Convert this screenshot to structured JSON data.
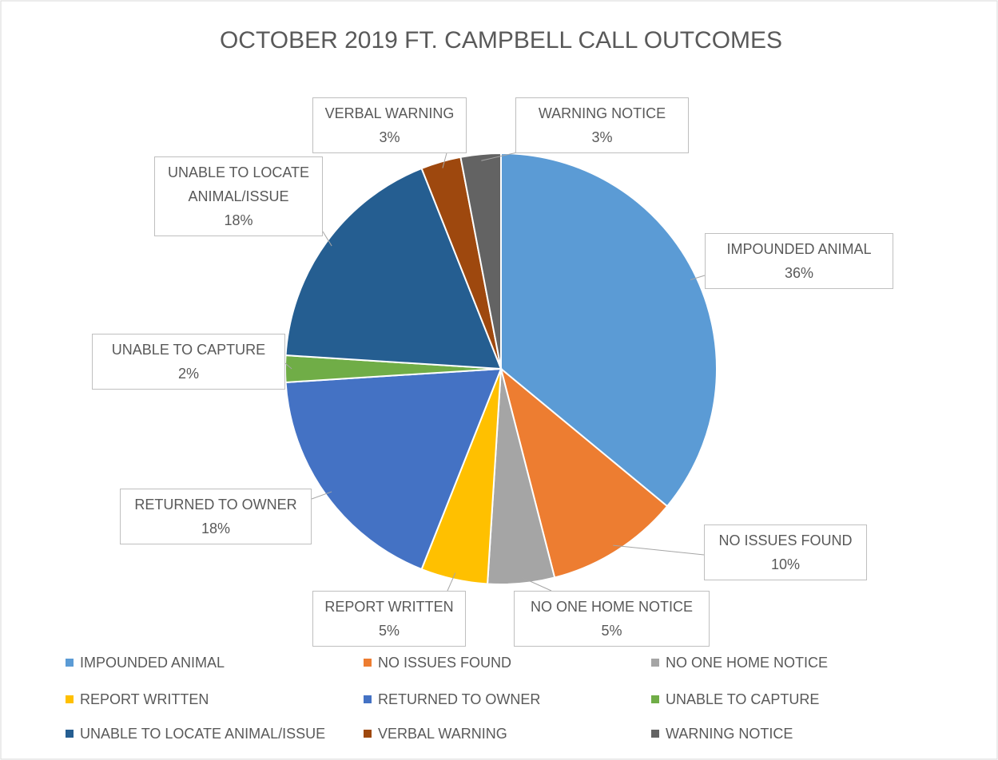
{
  "chart_data": {
    "type": "pie",
    "title": "OCTOBER 2019 FT. CAMPBELL CALL OUTCOMES",
    "categories": [
      "IMPOUNDED ANIMAL",
      "NO ISSUES FOUND",
      "NO ONE HOME NOTICE",
      "REPORT WRITTEN",
      "RETURNED TO OWNER",
      "UNABLE TO CAPTURE",
      "UNABLE TO LOCATE ANIMAL/ISSUE",
      "VERBAL WARNING",
      "WARNING NOTICE"
    ],
    "values": [
      36,
      10,
      5,
      5,
      18,
      2,
      18,
      3,
      3
    ],
    "value_labels": [
      "36%",
      "10%",
      "5%",
      "5%",
      "18%",
      "2%",
      "18%",
      "3%",
      "3%"
    ],
    "colors": [
      "#5b9bd5",
      "#ed7d31",
      "#a5a5a5",
      "#ffc000",
      "#4472c4",
      "#70ad47",
      "#255e91",
      "#9e480e",
      "#636363"
    ],
    "legend": "bottom"
  }
}
